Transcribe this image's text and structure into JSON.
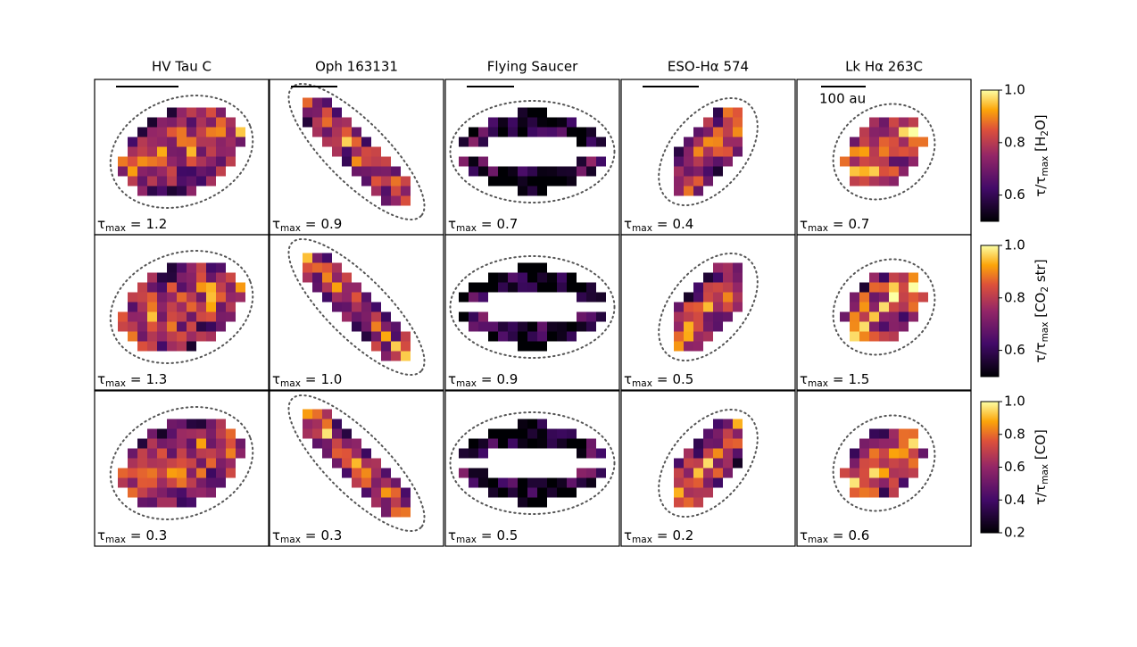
{
  "chart_data": {
    "type": "image-grid",
    "titles": [
      "HV Tau C",
      "Oph 163131",
      "Flying Saucer",
      "ESO-Hα 574",
      "Lk Hα 263C"
    ],
    "scale_bar_label": "100 au",
    "annotation_symbol": "τ",
    "annotation_subscript": "max",
    "annotation_equals": "=",
    "rows": [
      {
        "tau_max": [
          "1.2",
          "0.9",
          "0.7",
          "0.4",
          "0.7"
        ],
        "colorbar": {
          "label": [
            {
              "text": "τ/τ",
              "sub": false
            },
            {
              "text": "max",
              "sub": true
            },
            {
              "text": " [H",
              "sub": false
            },
            {
              "text": "2",
              "sub": true
            },
            {
              "text": "O]",
              "sub": false
            }
          ],
          "lim": [
            0.5,
            1.0
          ],
          "ticks": [
            0.6,
            0.8,
            {
              "value": 1.0,
              "label": "1.0"
            }
          ]
        }
      },
      {
        "tau_max": [
          "1.3",
          "1.0",
          "0.9",
          "0.5",
          "1.5"
        ],
        "colorbar": {
          "label": [
            {
              "text": "τ/τ",
              "sub": false
            },
            {
              "text": "max",
              "sub": true
            },
            {
              "text": " [CO",
              "sub": false
            },
            {
              "text": "2",
              "sub": true
            },
            {
              "text": " str]",
              "sub": false
            }
          ],
          "lim": [
            0.5,
            1.0
          ],
          "ticks": [
            0.6,
            0.8,
            {
              "value": 1.0,
              "label": "1.0"
            }
          ]
        }
      },
      {
        "tau_max": [
          "0.3",
          "0.3",
          "0.5",
          "0.2",
          "0.6"
        ],
        "colorbar": {
          "label": [
            {
              "text": "τ/τ",
              "sub": false
            },
            {
              "text": "max",
              "sub": true
            },
            {
              "text": " [CO]",
              "sub": false
            }
          ],
          "lim": [
            0.2,
            1.0
          ],
          "ticks": [
            0.2,
            0.4,
            0.6,
            0.8,
            {
              "value": 1.0,
              "label": "1.0"
            }
          ]
        }
      }
    ]
  }
}
